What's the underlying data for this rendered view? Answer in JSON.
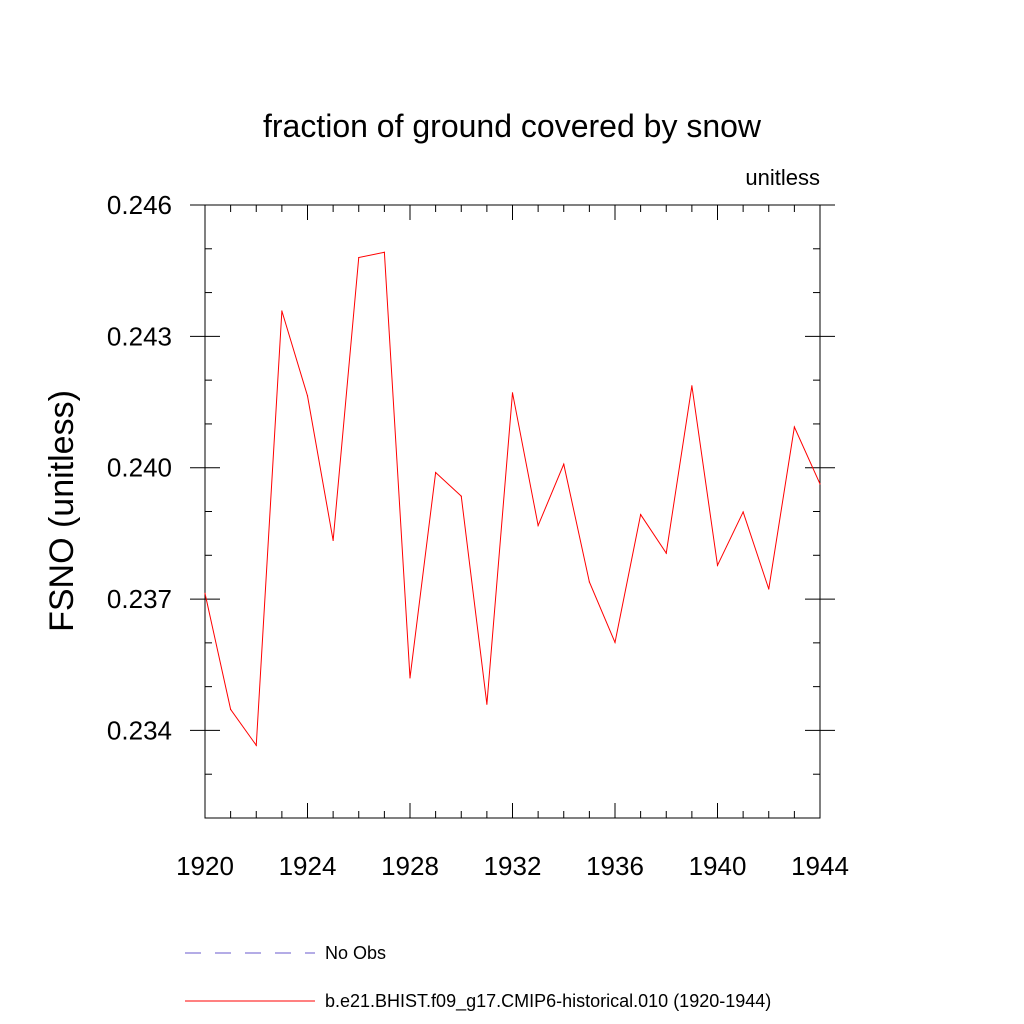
{
  "chart_data": {
    "type": "line",
    "title": "fraction of ground covered by snow",
    "units_label": "unitless",
    "xlabel": "",
    "ylabel": "FSNO  (unitless)",
    "xlim": [
      1920,
      1944
    ],
    "ylim": [
      0.232,
      0.246
    ],
    "x_ticks": [
      1920,
      1924,
      1928,
      1932,
      1936,
      1940,
      1944
    ],
    "x_tick_labels": [
      "1920",
      "1924",
      "1928",
      "1932",
      "1936",
      "1940",
      "1944"
    ],
    "y_ticks": [
      0.234,
      0.237,
      0.24,
      0.243,
      0.246
    ],
    "y_tick_labels": [
      "0.234",
      "0.237",
      "0.240",
      "0.243",
      "0.246"
    ],
    "y_minor_step": 0.001,
    "x_minor_step": 1,
    "grid": false,
    "series": [
      {
        "name": "b.e21.BHIST.f09_g17.CMIP6-historical.010 (1920-1944)",
        "color": "#ff0000",
        "style": "solid",
        "x": [
          1920,
          1921,
          1922,
          1923,
          1924,
          1925,
          1926,
          1927,
          1928,
          1929,
          1930,
          1931,
          1932,
          1933,
          1934,
          1935,
          1936,
          1937,
          1938,
          1939,
          1940,
          1941,
          1942,
          1943,
          1944
        ],
        "values": [
          0.23713,
          0.23448,
          0.23366,
          0.24358,
          0.24164,
          0.23834,
          0.2448,
          0.24492,
          0.2352,
          0.23989,
          0.23935,
          0.2346,
          0.24171,
          0.23868,
          0.24008,
          0.23739,
          0.23601,
          0.23893,
          0.23805,
          0.24187,
          0.23777,
          0.23899,
          0.23723,
          0.24093,
          0.23963
        ]
      }
    ],
    "legend": [
      {
        "label": "No Obs",
        "color": "#6a5acd",
        "style": "dashed"
      },
      {
        "label": "b.e21.BHIST.f09_g17.CMIP6-historical.010 (1920-1944)",
        "color": "#ff0000",
        "style": "solid"
      }
    ],
    "legend_position": "bottom-center"
  }
}
